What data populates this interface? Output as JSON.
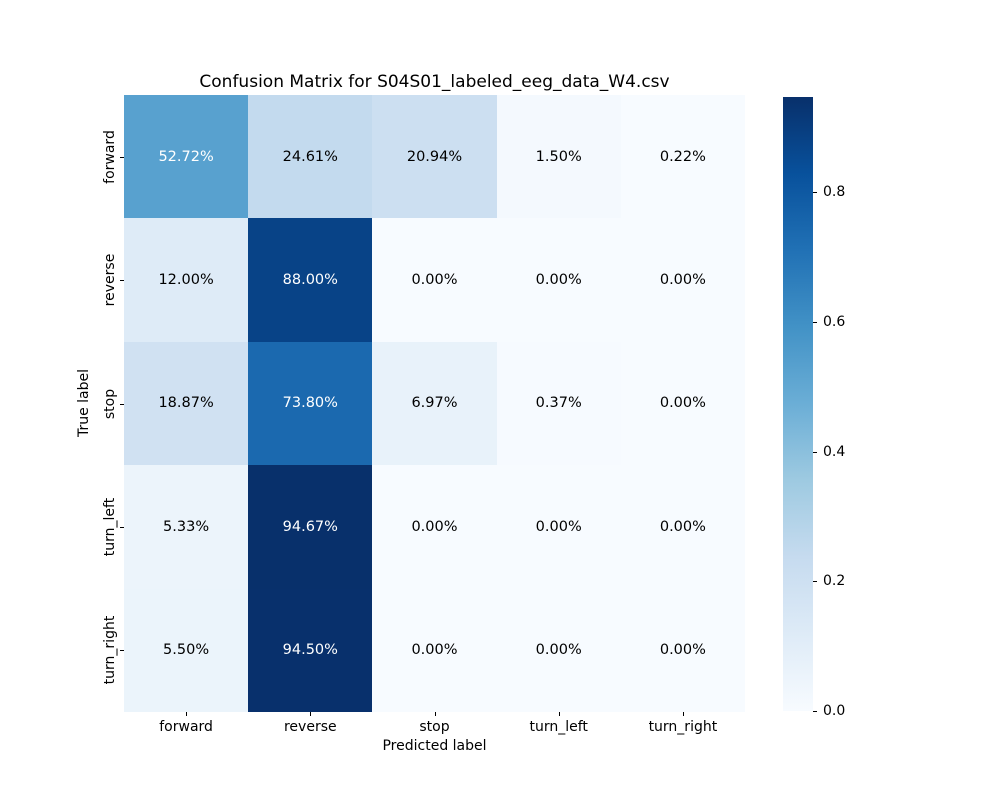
{
  "chart_data": {
    "type": "heatmap",
    "title": "Confusion Matrix for S04S01_labeled_eeg_data_W4.csv",
    "xlabel": "Predicted label",
    "ylabel": "True label",
    "x_categories": [
      "forward",
      "reverse",
      "stop",
      "turn_left",
      "turn_right"
    ],
    "y_categories": [
      "forward",
      "reverse",
      "stop",
      "turn_left",
      "turn_right"
    ],
    "values_fraction": [
      [
        0.5272,
        0.2461,
        0.2094,
        0.015,
        0.0022
      ],
      [
        0.12,
        0.88,
        0.0,
        0.0,
        0.0
      ],
      [
        0.1887,
        0.738,
        0.0697,
        0.0037,
        0.0
      ],
      [
        0.0533,
        0.9467,
        0.0,
        0.0,
        0.0
      ],
      [
        0.055,
        0.945,
        0.0,
        0.0,
        0.0
      ]
    ],
    "cell_labels": [
      [
        "52.72%",
        "24.61%",
        "20.94%",
        "1.50%",
        "0.22%"
      ],
      [
        "12.00%",
        "88.00%",
        "0.00%",
        "0.00%",
        "0.00%"
      ],
      [
        "18.87%",
        "73.80%",
        "6.97%",
        "0.37%",
        "0.00%"
      ],
      [
        "5.33%",
        "94.67%",
        "0.00%",
        "0.00%",
        "0.00%"
      ],
      [
        "5.50%",
        "94.50%",
        "0.00%",
        "0.00%",
        "0.00%"
      ]
    ],
    "colormap": "Blues",
    "colormap_stops": [
      "#f7fbff",
      "#deebf7",
      "#c6dbef",
      "#9ecae1",
      "#6baed6",
      "#4292c6",
      "#2171b5",
      "#08519c",
      "#08306b"
    ],
    "vmin": 0.0,
    "vmax": 0.9467,
    "colorbar_tick_labels": [
      "0.0",
      "0.2",
      "0.4",
      "0.6",
      "0.8"
    ],
    "colorbar_tick_values": [
      0.0,
      0.2,
      0.4,
      0.6,
      0.8
    ],
    "legend_position": "right-colorbar",
    "grid": false,
    "annotation_color_dark": "#000000",
    "annotation_color_light": "#ffffff",
    "background_color": "#ffffff"
  }
}
